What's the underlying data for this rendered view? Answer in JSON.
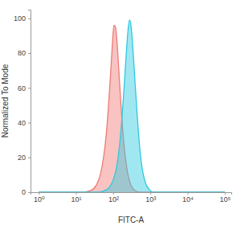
{
  "chart_data": {
    "type": "area",
    "log": "x",
    "grid": false,
    "x_label": "FITC-A",
    "y_label": "Normalized To Mode",
    "xlim": [
      0.6,
      150000
    ],
    "xticks": [
      {
        "value": 1,
        "label": "10⁰"
      },
      {
        "value": 10,
        "label": "10¹"
      },
      {
        "value": 100,
        "label": "10²"
      },
      {
        "value": 1000,
        "label": "10³"
      },
      {
        "value": 10000,
        "label": "10⁴"
      },
      {
        "value": 100000,
        "label": "10⁵"
      }
    ],
    "ylim": [
      0,
      105
    ],
    "yticks": [
      0,
      20,
      40,
      60,
      80,
      100
    ],
    "series": [
      {
        "color": "#f07a76",
        "x": [
          1,
          15,
          25,
          35,
          45,
          55,
          65,
          75,
          85,
          95,
          105,
          115,
          125,
          140,
          160,
          185,
          215,
          250,
          300,
          380,
          500,
          100000
        ],
        "values": [
          0,
          0,
          1,
          4,
          10,
          20,
          33,
          50,
          68,
          85,
          96,
          95,
          88,
          72,
          52,
          33,
          19,
          10,
          4,
          1,
          0,
          0
        ]
      },
      {
        "color": "#2ec9e0",
        "x": [
          1,
          40,
          60,
          80,
          100,
          125,
          150,
          175,
          200,
          225,
          250,
          275,
          300,
          340,
          390,
          450,
          520,
          620,
          750,
          900,
          1200,
          100000
        ],
        "values": [
          0,
          0,
          1,
          3,
          7,
          15,
          28,
          45,
          63,
          80,
          93,
          99,
          96,
          82,
          62,
          42,
          25,
          12,
          5,
          2,
          0,
          0
        ]
      }
    ]
  }
}
